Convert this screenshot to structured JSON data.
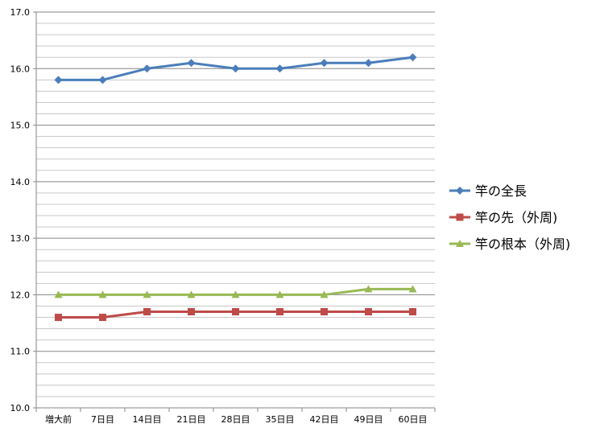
{
  "chart_data": {
    "type": "line",
    "categories": [
      "増大前",
      "7日目",
      "14日目",
      "21日目",
      "28日目",
      "35日目",
      "42日目",
      "49日目",
      "60日目"
    ],
    "ylim": [
      10.0,
      17.0
    ],
    "yticks": [
      "10.0",
      "11.0",
      "12.0",
      "13.0",
      "14.0",
      "15.0",
      "16.0",
      "17.0"
    ],
    "grid": true,
    "legend_position": "right",
    "series": [
      {
        "name": "竿の全長",
        "color": "#4a7ebb",
        "marker": "diamond",
        "values": [
          15.8,
          15.8,
          16.0,
          16.1,
          16.0,
          16.0,
          16.1,
          16.1,
          16.2
        ]
      },
      {
        "name": "竿の先（外周)",
        "color": "#be4b48",
        "marker": "square",
        "values": [
          11.6,
          11.6,
          11.7,
          11.7,
          11.7,
          11.7,
          11.7,
          11.7,
          11.7
        ]
      },
      {
        "name": "竿の根本（外周)",
        "color": "#98b954",
        "marker": "triangle",
        "values": [
          12.0,
          12.0,
          12.0,
          12.0,
          12.0,
          12.0,
          12.0,
          12.1,
          12.1
        ]
      }
    ]
  }
}
